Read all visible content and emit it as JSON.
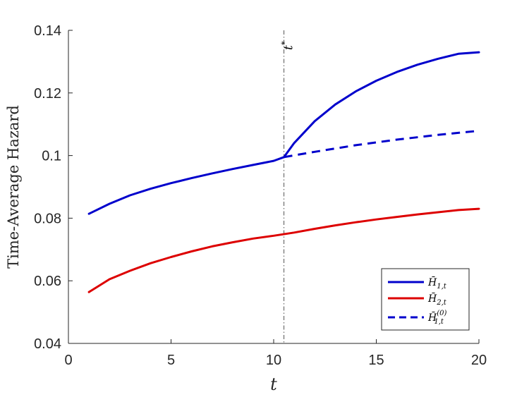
{
  "chart_data": {
    "type": "line",
    "title": "",
    "xlabel": "t",
    "ylabel": "Time-Average Hazard",
    "xlim": [
      0,
      20
    ],
    "ylim": [
      0.04,
      0.14
    ],
    "xticks": [
      0,
      5,
      10,
      15,
      20
    ],
    "xtick_labels": [
      "0",
      "5",
      "10",
      "15",
      "20"
    ],
    "yticks": [
      0.04,
      0.06,
      0.08,
      0.1,
      0.12,
      0.14
    ],
    "ytick_labels": [
      "0.04",
      "0.06",
      "0.08",
      "0.1",
      "0.12",
      "0.14"
    ],
    "grid": false,
    "legend_position": "bottom-right",
    "vline": {
      "x": 10.5,
      "label": "t",
      "label_sup": "*",
      "style": "dash-dot"
    },
    "series": [
      {
        "name": "H̄1,t",
        "color": "#0000cc",
        "style": "solid",
        "x": [
          1,
          2,
          3,
          4,
          5,
          6,
          7,
          8,
          9,
          10,
          10.5,
          11,
          12,
          13,
          14,
          15,
          16,
          17,
          18,
          19,
          20
        ],
        "y": [
          0.0814,
          0.0846,
          0.0873,
          0.0894,
          0.0912,
          0.0928,
          0.0943,
          0.0957,
          0.097,
          0.0983,
          0.0995,
          0.104,
          0.111,
          0.1163,
          0.1205,
          0.1239,
          0.1267,
          0.129,
          0.1309,
          0.1325,
          0.133
        ]
      },
      {
        "name": "H̄2,t",
        "color": "#dd0000",
        "style": "solid",
        "x": [
          1,
          2,
          3,
          4,
          5,
          6,
          7,
          8,
          9,
          10,
          11,
          12,
          13,
          14,
          15,
          16,
          17,
          18,
          19,
          20
        ],
        "y": [
          0.0564,
          0.0605,
          0.0632,
          0.0656,
          0.0676,
          0.0694,
          0.071,
          0.0723,
          0.0735,
          0.0744,
          0.0754,
          0.0766,
          0.0777,
          0.0787,
          0.0796,
          0.0804,
          0.0812,
          0.0819,
          0.0826,
          0.083
        ]
      },
      {
        "name": "H̄1,t(0)",
        "color": "#0000cc",
        "style": "dashed",
        "x": [
          10.5,
          12,
          14,
          16,
          18,
          20
        ],
        "y": [
          0.0995,
          0.1012,
          0.1033,
          0.1051,
          0.1066,
          0.1079
        ]
      }
    ],
    "legend": [
      {
        "base": "H̄",
        "sub": "1,t",
        "sup": ""
      },
      {
        "base": "H̄",
        "sub": "2,t",
        "sup": ""
      },
      {
        "base": "H̄",
        "sub": "1,t",
        "sup": "(0)"
      }
    ]
  }
}
